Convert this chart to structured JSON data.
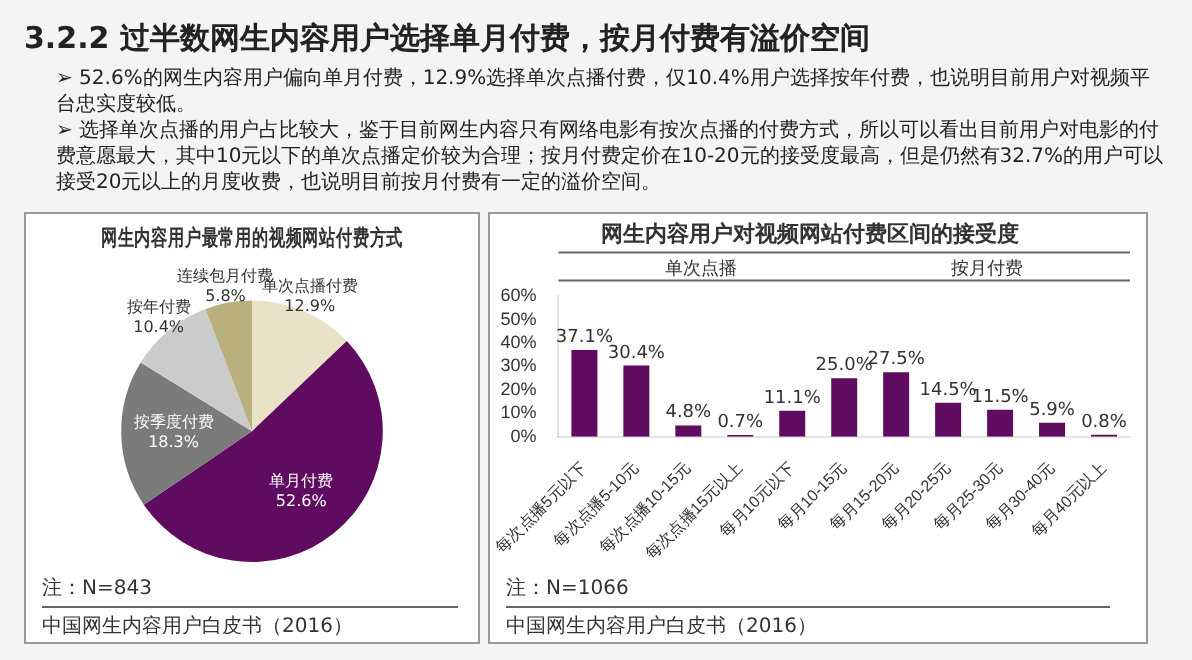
{
  "chart_data": [
    {
      "type": "other",
      "title": "3.2.2 过半数网生内容用户选择单月付费，按月付费有溢价空间",
      "annotations": [
        "➢ 52.6%的网生内容用户偏向单月付费，12.9%选择单次点播付费，仅10.4%用户选择按年付费，也说明目前用户对视频平台忠实度较低。",
        "➢ 选择单次点播的用户占比较大，鉴于目前网生内容只有网络电影有按次点播的付费方式，所以可以看出目前用户对电影的付费意愿最大，其中10元以下的单次点播定价较为合理；按月付费定价在10-20元的接受度最高，但是仍然有32.7%的用户可以接受20元以上的月度收费，也说明目前按月付费有一定的溢价空间。"
      ]
    },
    {
      "type": "pie",
      "title": "网生内容用户最常用的视频网站付费方式",
      "categories": [
        "单次点播付费",
        "单月付费",
        "按季度付费",
        "按年付费",
        "连续包月付费"
      ],
      "values": [
        12.9,
        52.6,
        18.3,
        10.4,
        5.8
      ],
      "value_labels": [
        "12.9%",
        "52.6%",
        "18.3%",
        "10.4%",
        "5.8%"
      ],
      "colors": [
        "#e9e2c6",
        "#5e0b60",
        "#7b7b7b",
        "#cbcbcb",
        "#b9b07e"
      ],
      "annotations": [
        "注：N=843",
        "中国网生内容用户白皮书（2016）"
      ]
    },
    {
      "type": "bar",
      "title": "网生内容用户对视频网站付费区间的接受度",
      "categories": [
        "每次点播5元以下",
        "每次点播5-10元",
        "每次点播10-15元",
        "每次点播15元以上",
        "每月10元以下",
        "每月10-15元",
        "每月15-20元",
        "每月20-25元",
        "每月25-30元",
        "每月30-40元",
        "每月40元以上"
      ],
      "values": [
        37.1,
        30.4,
        4.8,
        0.7,
        11.1,
        25.0,
        27.5,
        14.5,
        11.5,
        5.9,
        0.8
      ],
      "value_labels": [
        "37.1%",
        "30.4%",
        "4.8%",
        "0.7%",
        "11.1%",
        "25.0%",
        "27.5%",
        "14.5%",
        "11.5%",
        "5.9%",
        "0.8%"
      ],
      "color": "#5e0b60",
      "ylim": [
        0,
        60
      ],
      "yticks": [
        {
          "value": 0,
          "label": "0%"
        },
        {
          "value": 10,
          "label": "10%"
        },
        {
          "value": 20,
          "label": "20%"
        },
        {
          "value": 30,
          "label": "30%"
        },
        {
          "value": 40,
          "label": "40%"
        },
        {
          "value": 50,
          "label": "50%"
        },
        {
          "value": 60,
          "label": "60%"
        }
      ],
      "annotations": [
        "单次点播",
        "按月付费",
        "注：N=1066",
        "中国网生内容用户白皮书（2016）"
      ]
    }
  ]
}
